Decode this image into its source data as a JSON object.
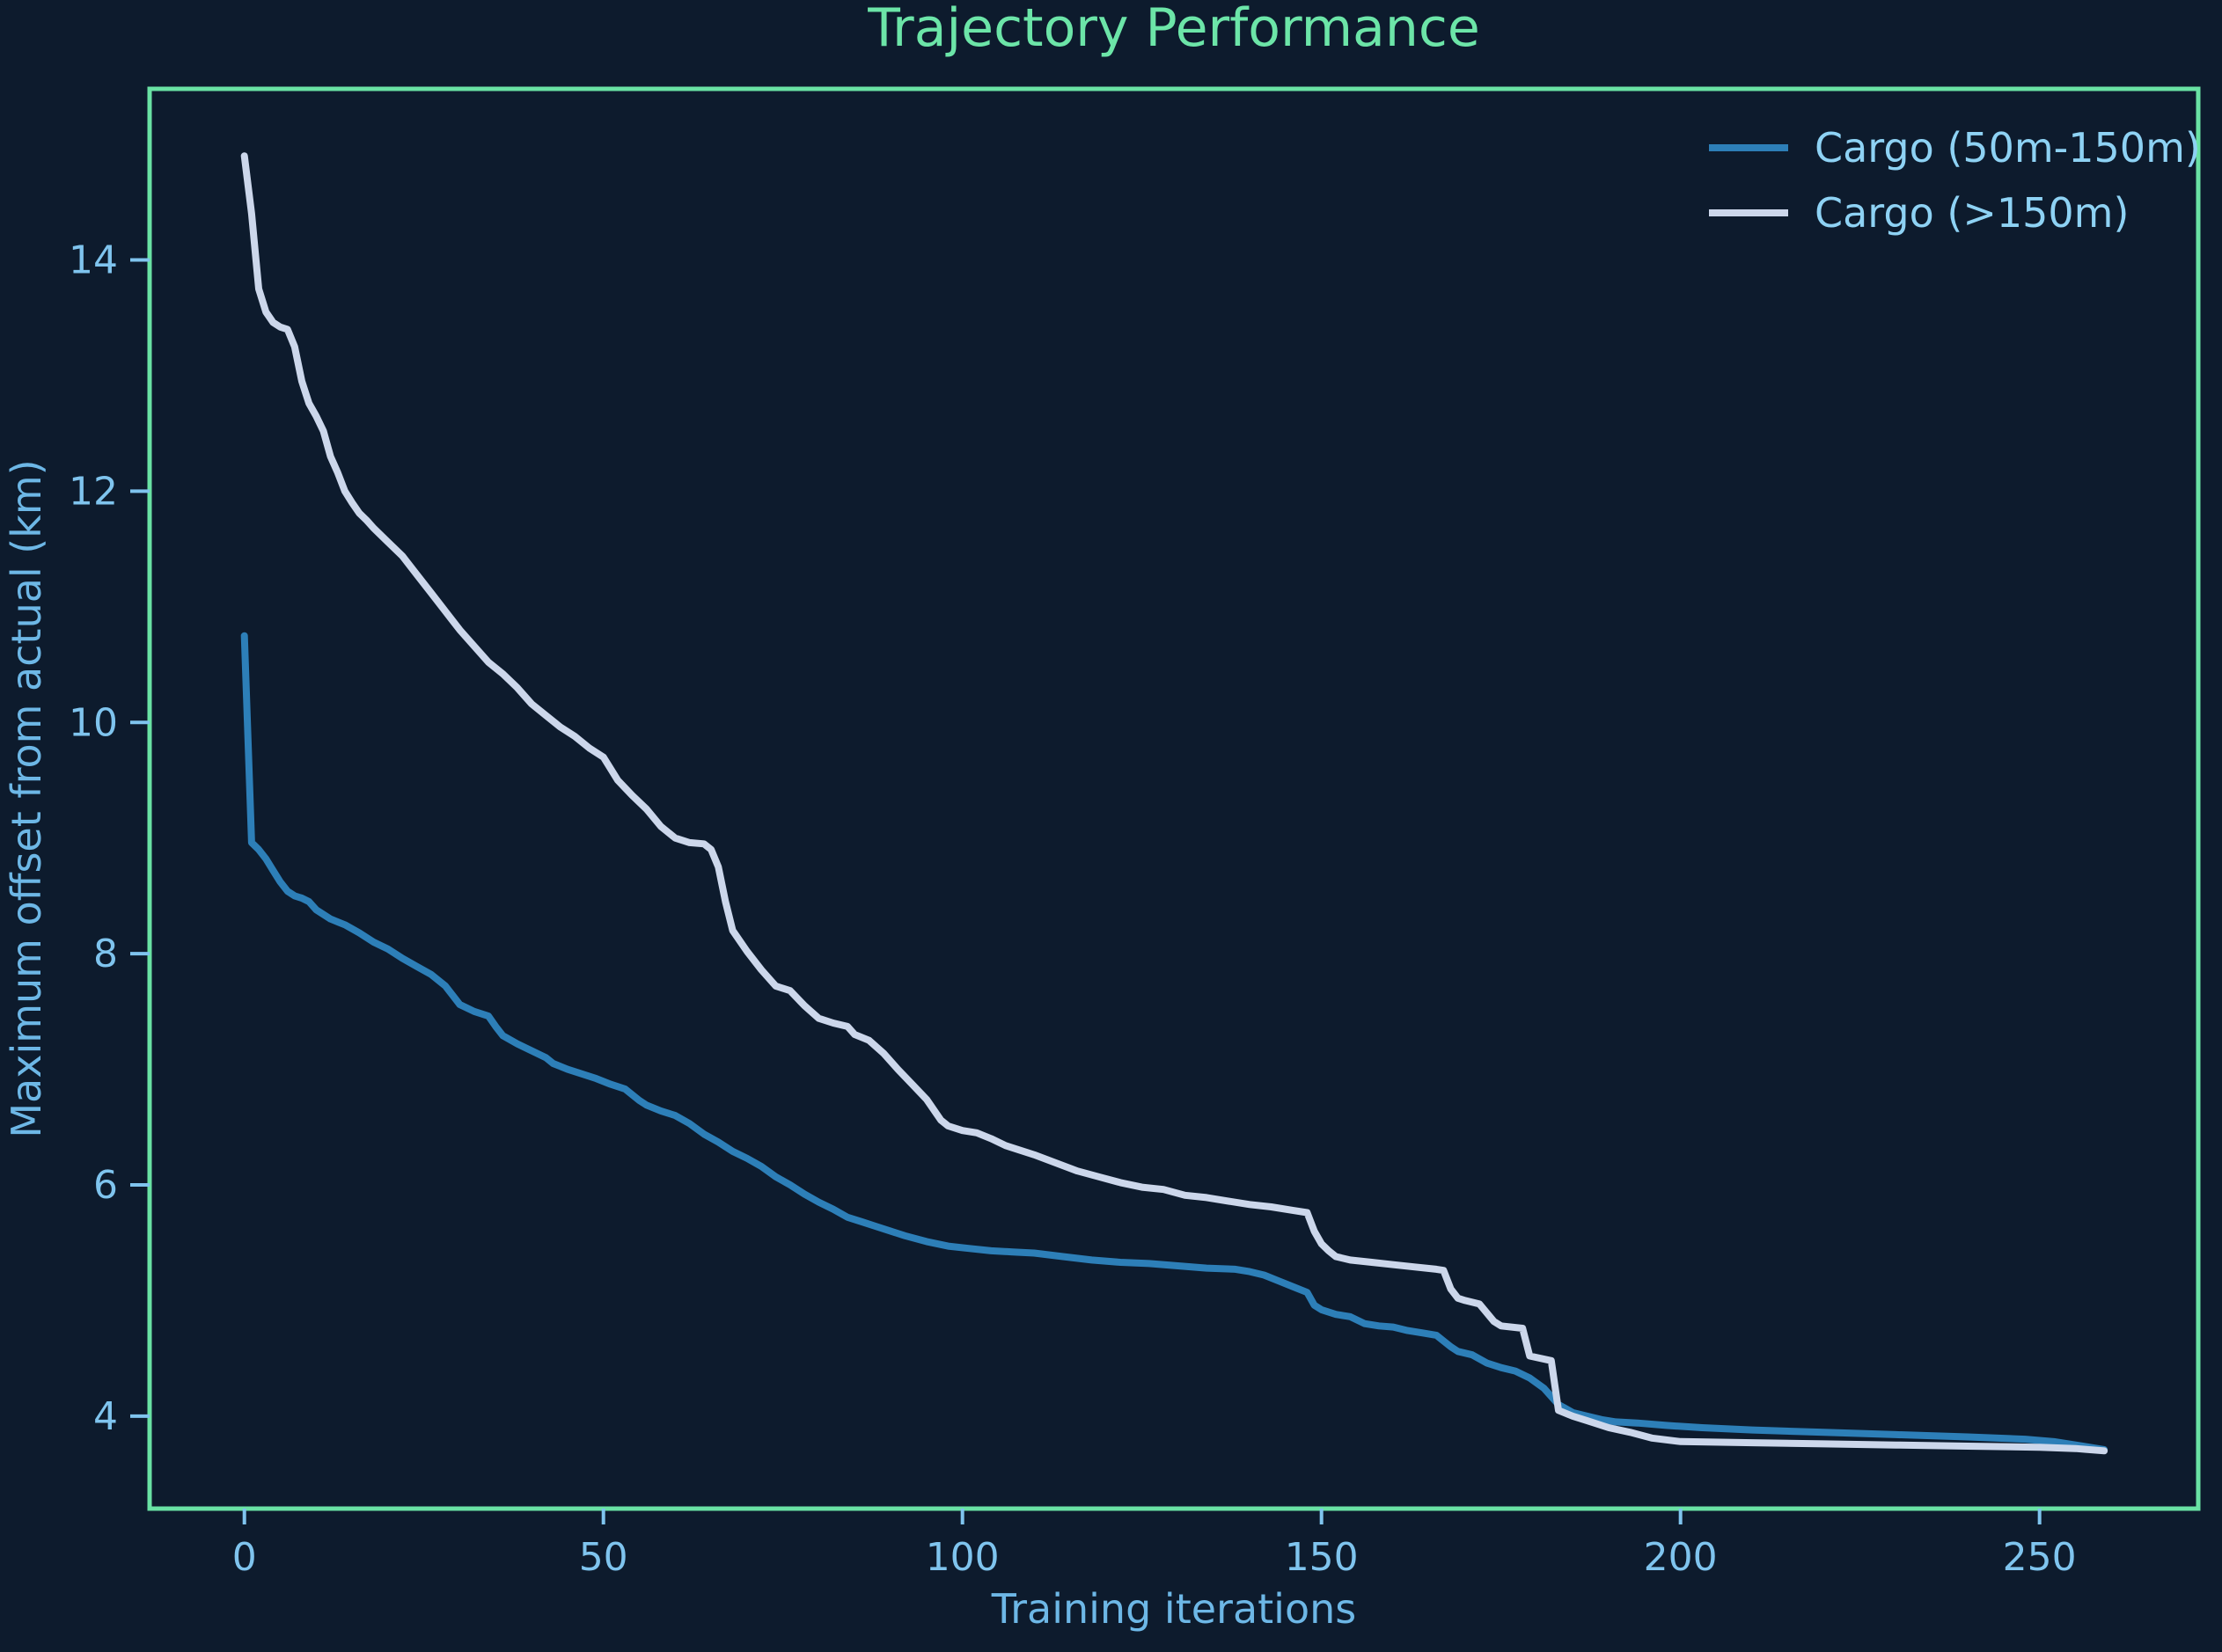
{
  "title": "Trajectory Performance",
  "colors": {
    "background": "#0d1b2d",
    "frame": "#69e2a4",
    "title": "#6ce5a8",
    "tick_label": "#7fc4ee",
    "axis_label": "#6db7e6",
    "legend_text": "#8ed2f4",
    "series_small": "#2d7fb8",
    "series_large": "#ccd7eb"
  },
  "chart_data": {
    "type": "line",
    "title": "Trajectory Performance",
    "xlabel": "Training iterations",
    "ylabel": "Maximum offset from actual (km)",
    "xlim": [
      -13.2,
      272.1
    ],
    "ylim": [
      3.2,
      15.48
    ],
    "xticks": [
      0,
      50,
      100,
      150,
      200,
      250
    ],
    "yticks": [
      4,
      6,
      8,
      10,
      12,
      14
    ],
    "grid": false,
    "legend_position": "upper right",
    "series": [
      {
        "name": "Cargo (50m-150m)",
        "color": "#2d7fb8",
        "points": [
          [
            0,
            10.75
          ],
          [
            1,
            8.96
          ],
          [
            2,
            8.9
          ],
          [
            3,
            8.82
          ],
          [
            4,
            8.72
          ],
          [
            5,
            8.62
          ],
          [
            6,
            8.54
          ],
          [
            7,
            8.5
          ],
          [
            8,
            8.48
          ],
          [
            9,
            8.45
          ],
          [
            10,
            8.38
          ],
          [
            12,
            8.3
          ],
          [
            14,
            8.25
          ],
          [
            16,
            8.18
          ],
          [
            18,
            8.1
          ],
          [
            20,
            8.04
          ],
          [
            22,
            7.96
          ],
          [
            24,
            7.89
          ],
          [
            26,
            7.82
          ],
          [
            28,
            7.72
          ],
          [
            30,
            7.56
          ],
          [
            32,
            7.5
          ],
          [
            34,
            7.46
          ],
          [
            35,
            7.37
          ],
          [
            36,
            7.29
          ],
          [
            38,
            7.22
          ],
          [
            40,
            7.16
          ],
          [
            42,
            7.1
          ],
          [
            43,
            7.05
          ],
          [
            45,
            7.0
          ],
          [
            47,
            6.96
          ],
          [
            49,
            6.92
          ],
          [
            51,
            6.87
          ],
          [
            53,
            6.83
          ],
          [
            55,
            6.73
          ],
          [
            56,
            6.69
          ],
          [
            58,
            6.64
          ],
          [
            60,
            6.6
          ],
          [
            62,
            6.53
          ],
          [
            64,
            6.44
          ],
          [
            66,
            6.37
          ],
          [
            68,
            6.29
          ],
          [
            70,
            6.23
          ],
          [
            72,
            6.16
          ],
          [
            74,
            6.07
          ],
          [
            76,
            6.0
          ],
          [
            78,
            5.92
          ],
          [
            80,
            5.85
          ],
          [
            82,
            5.79
          ],
          [
            84,
            5.72
          ],
          [
            86,
            5.68
          ],
          [
            88,
            5.64
          ],
          [
            90,
            5.6
          ],
          [
            92,
            5.56
          ],
          [
            95,
            5.51
          ],
          [
            98,
            5.47
          ],
          [
            101,
            5.45
          ],
          [
            104,
            5.43
          ],
          [
            107,
            5.42
          ],
          [
            110,
            5.41
          ],
          [
            114,
            5.38
          ],
          [
            118,
            5.35
          ],
          [
            122,
            5.33
          ],
          [
            126,
            5.32
          ],
          [
            130,
            5.3
          ],
          [
            134,
            5.28
          ],
          [
            138,
            5.27
          ],
          [
            140,
            5.25
          ],
          [
            142,
            5.22
          ],
          [
            144,
            5.17
          ],
          [
            146,
            5.12
          ],
          [
            148,
            5.07
          ],
          [
            149,
            4.96
          ],
          [
            150,
            4.92
          ],
          [
            152,
            4.88
          ],
          [
            154,
            4.86
          ],
          [
            156,
            4.8
          ],
          [
            158,
            4.78
          ],
          [
            160,
            4.77
          ],
          [
            162,
            4.74
          ],
          [
            164,
            4.72
          ],
          [
            166,
            4.7
          ],
          [
            168,
            4.6
          ],
          [
            169,
            4.56
          ],
          [
            171,
            4.53
          ],
          [
            173,
            4.46
          ],
          [
            175,
            4.42
          ],
          [
            177,
            4.39
          ],
          [
            179,
            4.33
          ],
          [
            181,
            4.24
          ],
          [
            183,
            4.1
          ],
          [
            185,
            4.03
          ],
          [
            187,
            4.0
          ],
          [
            189,
            3.97
          ],
          [
            191,
            3.95
          ],
          [
            194,
            3.94
          ],
          [
            198,
            3.92
          ],
          [
            203,
            3.9
          ],
          [
            210,
            3.88
          ],
          [
            220,
            3.86
          ],
          [
            230,
            3.84
          ],
          [
            240,
            3.82
          ],
          [
            248,
            3.8
          ],
          [
            252,
            3.78
          ],
          [
            256,
            3.74
          ],
          [
            259,
            3.71
          ]
        ]
      },
      {
        "name": "Cargo (>150m)",
        "color": "#ccd7eb",
        "points": [
          [
            0,
            14.9
          ],
          [
            1,
            14.4
          ],
          [
            2,
            13.75
          ],
          [
            3,
            13.55
          ],
          [
            4,
            13.46
          ],
          [
            5,
            13.42
          ],
          [
            6,
            13.4
          ],
          [
            7,
            13.25
          ],
          [
            8,
            12.95
          ],
          [
            9,
            12.76
          ],
          [
            10,
            12.65
          ],
          [
            11,
            12.52
          ],
          [
            12,
            12.3
          ],
          [
            13,
            12.16
          ],
          [
            14,
            12.0
          ],
          [
            15,
            11.9
          ],
          [
            16,
            11.81
          ],
          [
            17,
            11.75
          ],
          [
            18,
            11.68
          ],
          [
            20,
            11.56
          ],
          [
            22,
            11.44
          ],
          [
            24,
            11.28
          ],
          [
            26,
            11.12
          ],
          [
            28,
            10.96
          ],
          [
            30,
            10.8
          ],
          [
            32,
            10.66
          ],
          [
            34,
            10.52
          ],
          [
            36,
            10.42
          ],
          [
            38,
            10.3
          ],
          [
            40,
            10.16
          ],
          [
            42,
            10.06
          ],
          [
            44,
            9.96
          ],
          [
            46,
            9.88
          ],
          [
            48,
            9.78
          ],
          [
            50,
            9.7
          ],
          [
            52,
            9.5
          ],
          [
            54,
            9.37
          ],
          [
            56,
            9.25
          ],
          [
            58,
            9.1
          ],
          [
            60,
            9.0
          ],
          [
            62,
            8.96
          ],
          [
            64,
            8.95
          ],
          [
            65,
            8.9
          ],
          [
            66,
            8.75
          ],
          [
            67,
            8.45
          ],
          [
            68,
            8.2
          ],
          [
            70,
            8.02
          ],
          [
            72,
            7.86
          ],
          [
            74,
            7.72
          ],
          [
            76,
            7.68
          ],
          [
            78,
            7.55
          ],
          [
            80,
            7.44
          ],
          [
            82,
            7.4
          ],
          [
            84,
            7.37
          ],
          [
            85,
            7.3
          ],
          [
            87,
            7.25
          ],
          [
            89,
            7.14
          ],
          [
            91,
            7.0
          ],
          [
            93,
            6.87
          ],
          [
            95,
            6.74
          ],
          [
            97,
            6.56
          ],
          [
            98,
            6.51
          ],
          [
            100,
            6.47
          ],
          [
            102,
            6.45
          ],
          [
            104,
            6.4
          ],
          [
            106,
            6.34
          ],
          [
            108,
            6.3
          ],
          [
            110,
            6.26
          ],
          [
            113,
            6.19
          ],
          [
            116,
            6.12
          ],
          [
            119,
            6.07
          ],
          [
            122,
            6.02
          ],
          [
            125,
            5.98
          ],
          [
            128,
            5.96
          ],
          [
            131,
            5.91
          ],
          [
            134,
            5.89
          ],
          [
            137,
            5.86
          ],
          [
            140,
            5.83
          ],
          [
            143,
            5.81
          ],
          [
            146,
            5.78
          ],
          [
            148,
            5.76
          ],
          [
            149,
            5.6
          ],
          [
            150,
            5.49
          ],
          [
            151,
            5.43
          ],
          [
            152,
            5.38
          ],
          [
            154,
            5.35
          ],
          [
            157,
            5.33
          ],
          [
            160,
            5.31
          ],
          [
            163,
            5.29
          ],
          [
            166,
            5.27
          ],
          [
            167,
            5.26
          ],
          [
            168,
            5.1
          ],
          [
            169,
            5.02
          ],
          [
            170,
            5.0
          ],
          [
            172,
            4.97
          ],
          [
            174,
            4.82
          ],
          [
            175,
            4.78
          ],
          [
            178,
            4.76
          ],
          [
            179,
            4.52
          ],
          [
            182,
            4.48
          ],
          [
            183,
            4.05
          ],
          [
            185,
            4.0
          ],
          [
            187,
            3.96
          ],
          [
            190,
            3.9
          ],
          [
            193,
            3.86
          ],
          [
            196,
            3.81
          ],
          [
            200,
            3.78
          ],
          [
            210,
            3.77
          ],
          [
            220,
            3.76
          ],
          [
            230,
            3.75
          ],
          [
            240,
            3.74
          ],
          [
            250,
            3.73
          ],
          [
            255,
            3.72
          ],
          [
            259,
            3.7
          ]
        ]
      }
    ]
  }
}
